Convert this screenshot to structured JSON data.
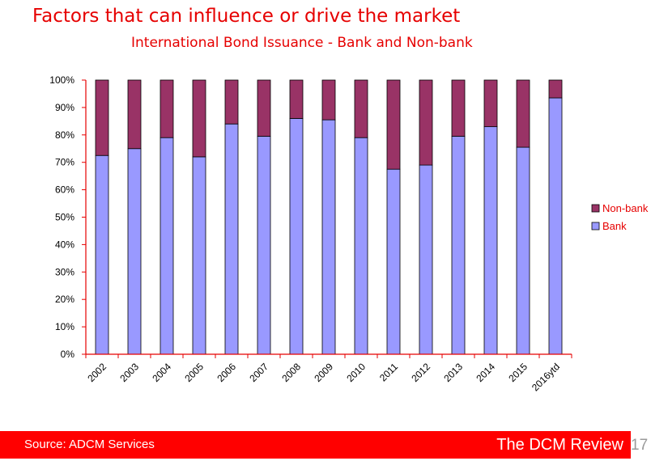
{
  "slide": {
    "title": "Factors that can influence or drive the market",
    "page_number": "17"
  },
  "footer": {
    "source": "Source: ADCM Services",
    "brand": "The DCM Review"
  },
  "colors": {
    "title": "#e60000",
    "bank": "#9999ff",
    "non_bank": "#993366",
    "footer_bar": "#ff0000",
    "axis": "#e60000"
  },
  "chart_data": {
    "type": "bar",
    "stacked": true,
    "percent": true,
    "title": "International Bond Issuance - Bank and Non-bank",
    "xlabel": "",
    "ylabel": "",
    "ylim": [
      0,
      100
    ],
    "y_ticks": [
      "0%",
      "10%",
      "20%",
      "30%",
      "40%",
      "50%",
      "60%",
      "70%",
      "80%",
      "90%",
      "100%"
    ],
    "categories": [
      "2002",
      "2003",
      "2004",
      "2005",
      "2006",
      "2007",
      "2008",
      "2009",
      "2010",
      "2011",
      "2012",
      "2013",
      "2014",
      "2015",
      "2016ytd"
    ],
    "series": [
      {
        "name": "Bank",
        "values": [
          72.5,
          75,
          79,
          72,
          84,
          79.5,
          86,
          85.5,
          79,
          67.5,
          69,
          79.5,
          83,
          75.5,
          93.5
        ]
      },
      {
        "name": "Non-bank",
        "values": [
          27.5,
          25,
          21,
          28,
          16,
          20.5,
          14,
          14.5,
          21,
          32.5,
          31,
          20.5,
          17,
          24.5,
          6.5
        ]
      }
    ],
    "legend": [
      "Non-bank",
      "Bank"
    ],
    "legend_position": "right",
    "grid": false
  }
}
